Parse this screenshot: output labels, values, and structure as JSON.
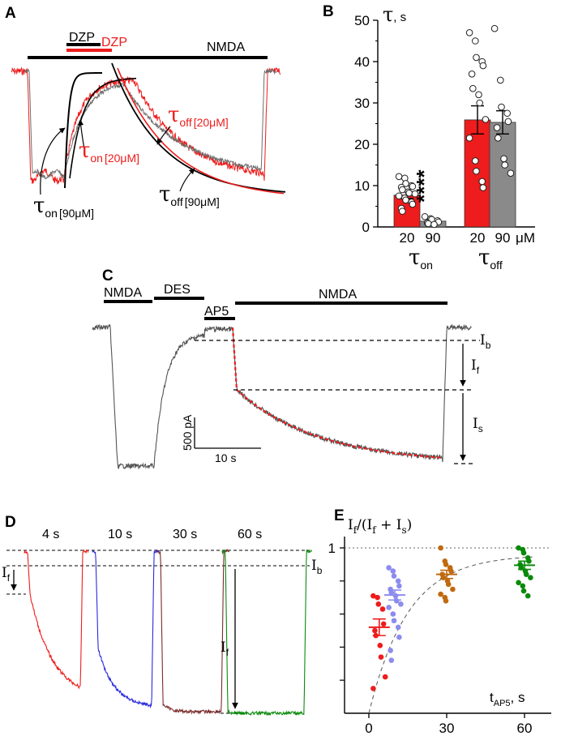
{
  "colors": {
    "red": "#ee1c1c",
    "black": "#000000",
    "gray": "#8a8a8a",
    "dark_gray": "#555555",
    "blue": "#2a2ae0",
    "brown": "#7a2a2a",
    "green": "#0a8a0a",
    "orange": "#c06a10",
    "lilac": "#8c8cee"
  },
  "panel_a": {
    "panel_label": "A",
    "bar_dzp_black": "DZP",
    "bar_dzp_red": "DZP",
    "bar_nmda": "NMDA",
    "tau_off_20": {
      "tau": "τ",
      "sub": "off",
      "conc": "[20μM]"
    },
    "tau_on_20": {
      "tau": "τ",
      "sub": "on",
      "conc": "[20μM]"
    },
    "tau_on_90": {
      "tau": "τ",
      "sub": "on",
      "conc": "[90μM]"
    },
    "tau_off_90": {
      "tau": "τ",
      "sub": "off",
      "conc": "[90μM]"
    }
  },
  "panel_c": {
    "panel_label": "C",
    "bar_nmda_1": "NMDA",
    "bar_des": "DES",
    "bar_ap5": "AP5",
    "bar_nmda_2": "NMDA",
    "scale_y": "500 pA",
    "scale_x": "10 s",
    "ib": {
      "main": "I",
      "sub": "b"
    },
    "if": {
      "main": "I",
      "sub": "f"
    },
    "is": {
      "main": "I",
      "sub": "s"
    }
  },
  "panel_d": {
    "panel_label": "D",
    "times": [
      "4 s",
      "10 s",
      "30 s",
      "60 s"
    ],
    "if": {
      "main": "I",
      "sub": "f"
    },
    "if2": {
      "main": "I",
      "sub": "f"
    },
    "ib": {
      "main": "I",
      "sub": "b"
    }
  },
  "chart_data": [
    {
      "panel": "B",
      "type": "bar",
      "ylabel_symbol": "τ",
      "ylabel_unit": ", s",
      "ylim": [
        0,
        50
      ],
      "yticks": [
        0,
        10,
        20,
        30,
        40,
        50
      ],
      "categories": [
        "20",
        "90",
        "20",
        "90"
      ],
      "unit_label": "μM",
      "group_labels": [
        {
          "main": "τ",
          "sub": "on"
        },
        {
          "main": "τ",
          "sub": "off"
        }
      ],
      "means": [
        7.7,
        1.4,
        25.9,
        25.3
      ],
      "errors": [
        0.8,
        0.3,
        3.4,
        2.8
      ],
      "colors": [
        "red",
        "gray",
        "red",
        "gray"
      ],
      "significance": "****",
      "points": [
        [
          12.2,
          11.8,
          10.5,
          10.0,
          9.8,
          9.6,
          9.0,
          8.5,
          8.2,
          8.0,
          7.5,
          7.0,
          6.5,
          6.0,
          5.5,
          4.5,
          3.8
        ],
        [
          2.5,
          2.0,
          1.8,
          1.5,
          1.2,
          1.0,
          0.8,
          0.6
        ],
        [
          47.0,
          45.0,
          41.0,
          40.0,
          39.0,
          37.0,
          33.5,
          32.0,
          30.0,
          26.0,
          21.5,
          16.0,
          13.5,
          11.0,
          9.5
        ],
        [
          48.0,
          35.5,
          29.0,
          27.5,
          25.5,
          24.0,
          21.5,
          16.5,
          15.0,
          13.0
        ]
      ]
    },
    {
      "panel": "E",
      "type": "scatter",
      "ylabel": {
        "a": "I",
        "a_sub": "f",
        "b": "/(I",
        "b_sub": "f",
        "c": " + I",
        "c_sub": "s",
        "d": ")"
      },
      "xlabel": {
        "main": "t",
        "sub": "AP5",
        "unit": ", s"
      },
      "xlim": [
        0,
        65
      ],
      "ylim": [
        0,
        1.1
      ],
      "xticks": [
        0,
        30,
        60
      ],
      "yticks": [
        1
      ],
      "ytick_labels": [
        "1"
      ],
      "groups": [
        {
          "x": 4,
          "color": "red",
          "mean": 0.52,
          "sem": 0.05,
          "values": [
            0.71,
            0.7,
            0.66,
            0.63,
            0.54,
            0.5,
            0.47,
            0.41,
            0.34,
            0.22,
            0.15
          ]
        },
        {
          "x": 10,
          "color": "lilac",
          "mean": 0.715,
          "sem": 0.03,
          "values": [
            0.88,
            0.86,
            0.83,
            0.8,
            0.77,
            0.75,
            0.73,
            0.71,
            0.68,
            0.66,
            0.64,
            0.6,
            0.56,
            0.52,
            0.46,
            0.38,
            0.32
          ]
        },
        {
          "x": 30,
          "color": "orange",
          "mean": 0.84,
          "sem": 0.025,
          "values": [
            1.0,
            0.92,
            0.9,
            0.88,
            0.86,
            0.84,
            0.82,
            0.8,
            0.78,
            0.75,
            0.72,
            0.7,
            0.68
          ]
        },
        {
          "x": 60,
          "color": "green",
          "mean": 0.895,
          "sem": 0.025,
          "values": [
            1.0,
            0.99,
            0.97,
            0.94,
            0.92,
            0.9,
            0.88,
            0.86,
            0.84,
            0.82,
            0.79,
            0.77,
            0.74,
            0.71
          ]
        }
      ],
      "fit": {
        "tau": 15,
        "plateau": 0.96
      },
      "reference_line": 1
    }
  ]
}
